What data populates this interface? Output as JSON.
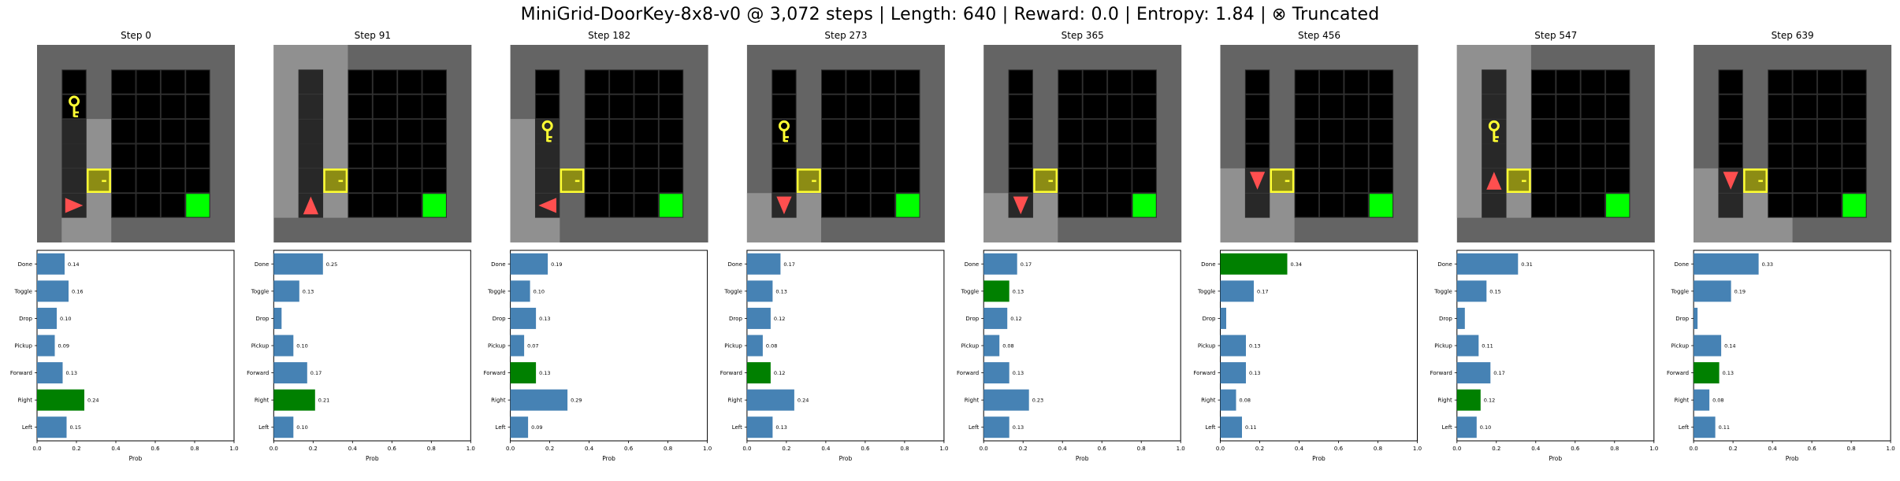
{
  "title": "MiniGrid-DoorKey-8x8-v0 @ 3,072 steps | Length: 640 | Reward: 0.0 | Entropy: 1.84 | ⊗ Truncated",
  "colors": {
    "bar": "#4682b4",
    "bar_selected": "#008000",
    "wall": "#646464",
    "visible_wall": "#909090",
    "floor": "#000000",
    "grid_line": "#2a2a2a",
    "key": "#ffff33",
    "door_fill": "#8c8c14",
    "door_border": "#ffff33",
    "goal": "#00ff00",
    "agent": "#ff4f4f"
  },
  "icons": {
    "key": "key-icon",
    "door": "locked-door-icon",
    "goal": "goal-square-icon",
    "agent": "agent-triangle-icon"
  },
  "chart_data": {
    "type": "bar",
    "orientation": "horizontal",
    "categories": [
      "Done",
      "Toggle",
      "Drop",
      "Pickup",
      "Forward",
      "Right",
      "Left"
    ],
    "xlabel": "Prob",
    "xlim": [
      0,
      1
    ],
    "xticks": [
      "0.0",
      "0.2",
      "0.4",
      "0.6",
      "0.8",
      "1.0"
    ],
    "panels": [
      {
        "label": "Step 0",
        "agent_dir": "right",
        "values": [
          0.14,
          0.16,
          0.1,
          0.09,
          0.13,
          0.24,
          0.15
        ],
        "labels": [
          "0.14",
          "0.16",
          "0.10",
          "0.09",
          "0.13",
          "0.24",
          "0.15"
        ],
        "selected": "Right"
      },
      {
        "label": "Step 91",
        "agent_dir": "up",
        "values": [
          0.25,
          0.13,
          0.04,
          0.1,
          0.17,
          0.21,
          0.1
        ],
        "labels": [
          "0.25",
          "0.13",
          "",
          "0.10",
          "0.17",
          "0.21",
          "0.10"
        ],
        "selected": "Right"
      },
      {
        "label": "Step 182",
        "agent_dir": "left",
        "values": [
          0.19,
          0.1,
          0.13,
          0.07,
          0.13,
          0.29,
          0.09
        ],
        "labels": [
          "0.19",
          "0.10",
          "0.13",
          "0.07",
          "0.13",
          "0.29",
          "0.09"
        ],
        "selected": "Forward"
      },
      {
        "label": "Step 273",
        "agent_dir": "down",
        "values": [
          0.17,
          0.13,
          0.12,
          0.08,
          0.12,
          0.24,
          0.13
        ],
        "labels": [
          "0.17",
          "0.13",
          "0.12",
          "0.08",
          "0.12",
          "0.24",
          "0.13"
        ],
        "selected": "Forward"
      },
      {
        "label": "Step 365",
        "agent_dir": "down",
        "values": [
          0.17,
          0.13,
          0.12,
          0.08,
          0.13,
          0.23,
          0.13
        ],
        "labels": [
          "0.17",
          "0.13",
          "0.12",
          "0.08",
          "0.13",
          "0.23",
          "0.13"
        ],
        "selected": "Toggle"
      },
      {
        "label": "Step 456",
        "agent_dir": "down",
        "values": [
          0.34,
          0.17,
          0.03,
          0.13,
          0.13,
          0.08,
          0.11
        ],
        "labels": [
          "0.34",
          "0.17",
          "",
          "0.13",
          "0.13",
          "0.08",
          "0.11"
        ],
        "selected": "Done"
      },
      {
        "label": "Step 547",
        "agent_dir": "up",
        "values": [
          0.31,
          0.15,
          0.04,
          0.11,
          0.17,
          0.12,
          0.1
        ],
        "labels": [
          "0.31",
          "0.15",
          "",
          "0.11",
          "0.17",
          "0.12",
          "0.10"
        ],
        "selected": "Right"
      },
      {
        "label": "Step 639",
        "agent_dir": "down",
        "values": [
          0.33,
          0.19,
          0.02,
          0.14,
          0.13,
          0.08,
          0.11
        ],
        "labels": [
          "0.33",
          "0.19",
          "",
          "0.14",
          "0.13",
          "0.08",
          "0.11"
        ],
        "selected": "Forward"
      }
    ]
  }
}
